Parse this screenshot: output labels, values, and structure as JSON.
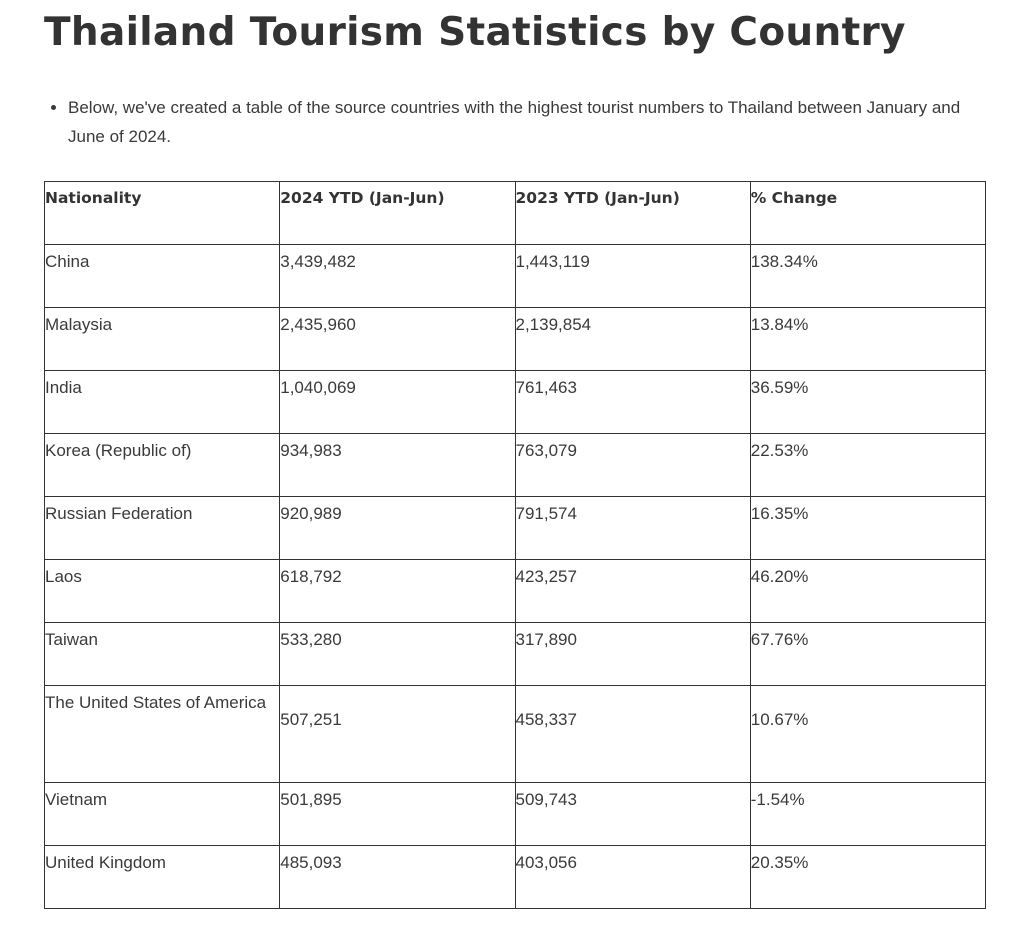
{
  "title": "Thailand Tourism Statistics by Country",
  "intro": "Below, we've created a table of the source countries with the highest tourist numbers to Thailand between January and June of 2024.",
  "table": {
    "headers": [
      "Nationality",
      "2024 YTD (Jan-Jun)",
      "2023 YTD (Jan-Jun)",
      "% Change"
    ],
    "rows": [
      [
        "China",
        "3,439,482",
        "1,443,119",
        "138.34%"
      ],
      [
        "Malaysia",
        "2,435,960",
        "2,139,854",
        "13.84%"
      ],
      [
        "India",
        "1,040,069",
        "761,463",
        "36.59%"
      ],
      [
        "Korea (Republic of)",
        "934,983",
        "763,079",
        "22.53%"
      ],
      [
        "Russian Federation",
        "920,989",
        "791,574",
        "16.35%"
      ],
      [
        "Laos",
        "618,792",
        "423,257",
        "46.20%"
      ],
      [
        "Taiwan",
        "533,280",
        "317,890",
        "67.76%"
      ],
      [
        "The United States of America",
        "507,251",
        "458,337",
        "10.67%"
      ],
      [
        "Vietnam",
        "501,895",
        "509,743",
        "-1.54%"
      ],
      [
        "United Kingdom",
        "485,093",
        "403,056",
        "20.35%"
      ]
    ]
  }
}
